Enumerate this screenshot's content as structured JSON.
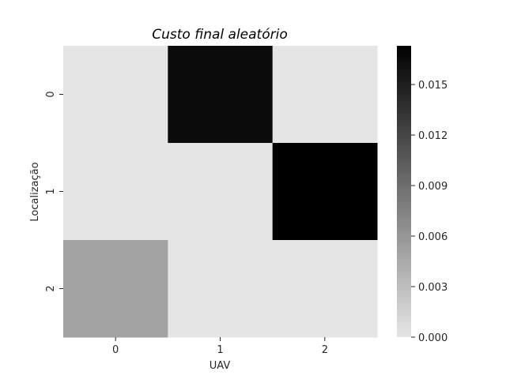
{
  "chart_data": {
    "type": "heatmap",
    "title": "Custo final aleatório",
    "xlabel": "UAV",
    "ylabel": "Localização",
    "x_categories": [
      "0",
      "1",
      "2"
    ],
    "y_categories": [
      "0",
      "1",
      "2"
    ],
    "values": [
      [
        0.0,
        0.0165,
        0.0
      ],
      [
        0.0,
        0.0,
        0.0173
      ],
      [
        0.005,
        0.0,
        0.0
      ]
    ],
    "colormap": {
      "low_color": "#e5e5e5",
      "high_color": "#000000"
    },
    "vmin": 0.0,
    "vmax": 0.0173,
    "colorbar_ticks": [
      0.0,
      0.003,
      0.006,
      0.009,
      0.012,
      0.015
    ],
    "colorbar_tick_labels": [
      "0.000",
      "0.003",
      "0.006",
      "0.009",
      "0.012",
      "0.015"
    ],
    "grid": false
  }
}
